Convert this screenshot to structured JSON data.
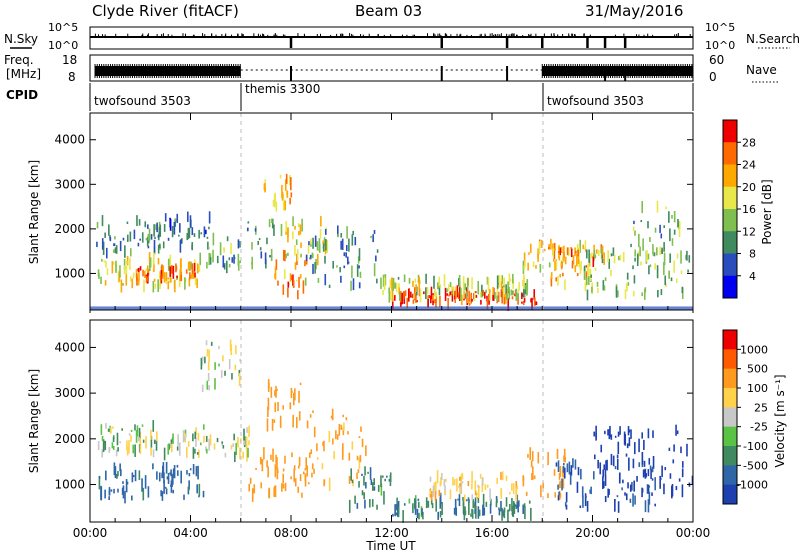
{
  "header": {
    "station": "Clyde River (fitACF)",
    "beam": "Beam 03",
    "date": "31/May/2016"
  },
  "top_panels": {
    "nsky_label": "N.Sky",
    "nsky_ticks": [
      "10^5",
      "10^0"
    ],
    "nsearch_label": "N.Search",
    "nsearch_ticks": [
      "10^5",
      "10^0"
    ],
    "freq_label_line1": "Freq.",
    "freq_label_line2": "[MHz]",
    "freq_ticks": [
      "18",
      "8"
    ],
    "nave_label": "Nave",
    "nave_ticks": [
      "60",
      "0"
    ],
    "cpid_label": "CPID",
    "cpid_segments": [
      {
        "name": "twofsound 3503",
        "start_hour": 0,
        "end_hour": 6
      },
      {
        "name": "themis 3300",
        "start_hour": 6,
        "end_hour": 18
      },
      {
        "name": "twofsound 3503",
        "start_hour": 18,
        "end_hour": 24
      }
    ],
    "nsky_spike_hours": [
      8.0,
      14.0,
      16.6,
      18.0,
      19.8,
      20.5,
      21.3
    ]
  },
  "x_axis": {
    "label": "Time UT",
    "ticks": [
      "00:00",
      "04:00",
      "08:00",
      "12:00",
      "16:00",
      "20:00",
      "00:00"
    ],
    "range_hours": [
      0,
      24
    ]
  },
  "power_panel": {
    "ylabel": "Slant Range [km]",
    "yticks": [
      "1000",
      "2000",
      "3000",
      "4000"
    ],
    "colorbar_label": "Power [dB]",
    "colorbar_ticks": [
      "4",
      "8",
      "12",
      "16",
      "20",
      "24",
      "28"
    ],
    "colors": [
      "#0000ee",
      "#2a4dbe",
      "#3f8a5e",
      "#7fbf4f",
      "#e8e84a",
      "#ffa800",
      "#ff6a00",
      "#ee0000"
    ]
  },
  "velocity_panel": {
    "ylabel": "Slant Range [km]",
    "yticks": [
      "1000",
      "2000",
      "3000",
      "4000"
    ],
    "colorbar_label": "Velocity [m s⁻¹]",
    "colorbar_ticks": [
      "1000",
      "500",
      "100",
      "25",
      "-25",
      "-100",
      "-500",
      "-1000"
    ],
    "colors": [
      "#1e3fb0",
      "#2e66a8",
      "#3f8a5e",
      "#5ac245",
      "#c8c8c8",
      "#ffd24a",
      "#ff9a1e",
      "#ff5a00",
      "#ee0000"
    ]
  },
  "chart_data": {
    "type": "heatmap",
    "title": "Clyde River (fitACF) Beam 03 31/May/2016",
    "xlabel": "Time UT",
    "ylabel": "Slant Range [km]",
    "xlim_hours": [
      0,
      24
    ],
    "ylim_km": [
      180,
      4600
    ],
    "power_blobs": [
      {
        "t0": 0.2,
        "t1": 2.8,
        "r0": 1450,
        "r1": 2200,
        "db": 9
      },
      {
        "t0": 0.3,
        "t1": 4.4,
        "r0": 700,
        "r1": 1350,
        "db": 18
      },
      {
        "t0": 1.8,
        "t1": 4.2,
        "r0": 850,
        "r1": 1150,
        "db": 26
      },
      {
        "t0": 2.5,
        "t1": 4.8,
        "r0": 1550,
        "r1": 2300,
        "db": 8
      },
      {
        "t0": 4.5,
        "t1": 6.0,
        "r0": 1100,
        "r1": 1800,
        "db": 12
      },
      {
        "t0": 6.2,
        "t1": 7.4,
        "r0": 1200,
        "r1": 2200,
        "db": 12
      },
      {
        "t0": 6.8,
        "t1": 8.0,
        "r0": 2500,
        "r1": 3200,
        "db": 22
      },
      {
        "t0": 7.2,
        "t1": 8.6,
        "r0": 500,
        "r1": 1500,
        "db": 24
      },
      {
        "t0": 7.5,
        "t1": 9.5,
        "r0": 1300,
        "r1": 2200,
        "db": 18
      },
      {
        "t0": 8.5,
        "t1": 11.5,
        "r0": 700,
        "r1": 2000,
        "db": 9
      },
      {
        "t0": 12.0,
        "t1": 17.8,
        "r0": 300,
        "r1": 600,
        "db": 28
      },
      {
        "t0": 11.5,
        "t1": 17.5,
        "r0": 450,
        "r1": 900,
        "db": 16
      },
      {
        "t0": 17.2,
        "t1": 19.8,
        "r0": 700,
        "r1": 1700,
        "db": 20
      },
      {
        "t0": 18.0,
        "t1": 20.5,
        "r0": 1100,
        "r1": 1600,
        "db": 24
      },
      {
        "t0": 19.5,
        "t1": 24.0,
        "r0": 500,
        "r1": 1500,
        "db": 14
      },
      {
        "t0": 21.5,
        "t1": 23.5,
        "r0": 1300,
        "r1": 2500,
        "db": 12
      }
    ],
    "velocity_blobs": [
      {
        "t0": 0.2,
        "t1": 4.6,
        "r0": 1650,
        "r1": 2300,
        "v": 0
      },
      {
        "t0": 0.3,
        "t1": 4.6,
        "r0": 700,
        "r1": 1400,
        "v": 150
      },
      {
        "t0": 4.6,
        "t1": 6.3,
        "r0": 1600,
        "r1": 2200,
        "v": 0
      },
      {
        "t0": 4.4,
        "t1": 6.0,
        "r0": 3100,
        "r1": 4200,
        "v": 0
      },
      {
        "t0": 6.2,
        "t1": 9.0,
        "r0": 700,
        "r1": 1700,
        "v": -200
      },
      {
        "t0": 7.0,
        "t1": 8.4,
        "r0": 2300,
        "r1": 3300,
        "v": -300
      },
      {
        "t0": 8.5,
        "t1": 11.0,
        "r0": 1000,
        "r1": 2600,
        "v": -150
      },
      {
        "t0": 10.2,
        "t1": 12.0,
        "r0": 500,
        "r1": 1300,
        "v": 80
      },
      {
        "t0": 12.0,
        "t1": 17.6,
        "r0": 300,
        "r1": 700,
        "v": 80
      },
      {
        "t0": 13.5,
        "t1": 17.0,
        "r0": 700,
        "r1": 1200,
        "v": -60
      },
      {
        "t0": 17.2,
        "t1": 19.0,
        "r0": 700,
        "r1": 1700,
        "v": -300
      },
      {
        "t0": 18.5,
        "t1": 22.5,
        "r0": 500,
        "r1": 1500,
        "v": 500
      },
      {
        "t0": 20.0,
        "t1": 24.0,
        "r0": 800,
        "r1": 2200,
        "v": 700
      }
    ]
  }
}
